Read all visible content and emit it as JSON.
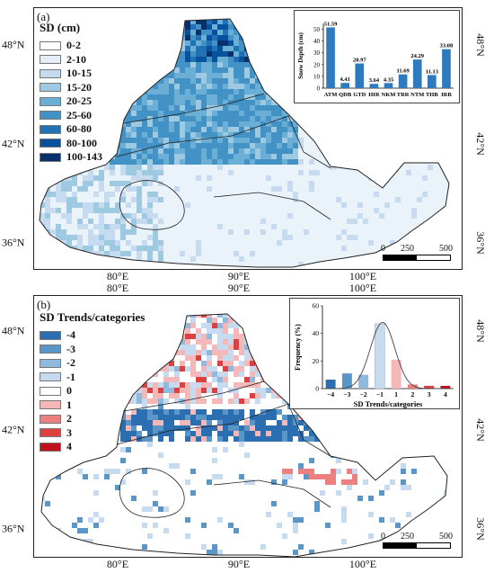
{
  "panel_a": {
    "tag": "(a)",
    "legend": {
      "title": "SD (cm)",
      "items": [
        {
          "label": "0-2",
          "color": "#ffffff"
        },
        {
          "label": "2-10",
          "color": "#e4eef8"
        },
        {
          "label": "10-15",
          "color": "#c6dbef"
        },
        {
          "label": "15-20",
          "color": "#9ecae1"
        },
        {
          "label": "20-25",
          "color": "#6baed6"
        },
        {
          "label": "25-60",
          "color": "#4292c6"
        },
        {
          "label": "60-80",
          "color": "#2171b5"
        },
        {
          "label": "80-100",
          "color": "#08519c"
        },
        {
          "label": "100-143",
          "color": "#08306b"
        }
      ]
    },
    "scale": {
      "labels": [
        "0",
        "250",
        "500 km"
      ]
    }
  },
  "panel_b": {
    "tag": "(b)",
    "legend": {
      "title": "SD Trends/categories",
      "items": [
        {
          "label": "-4",
          "color": "#2c6fb0"
        },
        {
          "label": "-3",
          "color": "#5a96c8"
        },
        {
          "label": "-2",
          "color": "#8fb9dd"
        },
        {
          "label": "-1",
          "color": "#c6dbef"
        },
        {
          "label": "0",
          "color": "#ffffff"
        },
        {
          "label": "1",
          "color": "#f4b8b8"
        },
        {
          "label": "2",
          "color": "#ec7f7f"
        },
        {
          "label": "3",
          "color": "#dd4040"
        },
        {
          "label": "4",
          "color": "#c0101e"
        }
      ]
    },
    "scale": {
      "labels": [
        "0",
        "250",
        "500 km"
      ]
    }
  },
  "axes": {
    "lon_labels": [
      "80°E",
      "90°E",
      "100°E"
    ],
    "lat_labels": [
      "48°N",
      "42°N",
      "36°N"
    ]
  },
  "chart_data": [
    {
      "type": "bar",
      "ylabel": "Snow Depth (cm)",
      "categories": [
        "ATM",
        "QDB",
        "GTD",
        "HIR",
        "NKM",
        "TRR",
        "NTM",
        "THB",
        "IRB"
      ],
      "values": [
        51.59,
        4.41,
        20.97,
        3.64,
        4.35,
        11.69,
        24.29,
        11.13,
        33.08
      ],
      "value_labels": [
        "51.59",
        "4.41",
        "20.97",
        "3.64",
        "4.35",
        "11.69",
        "24.29",
        "11.13",
        "33.08"
      ],
      "ylim": [
        0,
        55
      ],
      "yticks": [
        "0",
        "10",
        "20",
        "30",
        "40",
        "50"
      ],
      "bar_color": "#2d7bbd"
    },
    {
      "type": "bar",
      "xlabel": "SD Trends/categories",
      "ylabel": "Frequency (%)",
      "categories": [
        "−4",
        "−3",
        "−2",
        "−1",
        "1",
        "2",
        "3",
        "4"
      ],
      "values": [
        6.5,
        11,
        10,
        47,
        21,
        3,
        2,
        2
      ],
      "colors": [
        "#2c6fb0",
        "#5a96c8",
        "#8fb9dd",
        "#c6dbef",
        "#f4b8b8",
        "#ec7f7f",
        "#dd4040",
        "#c0101e"
      ],
      "ylim": [
        0,
        60
      ],
      "yticks": [
        "0",
        "20",
        "40",
        "60"
      ],
      "curve": "normal fit"
    }
  ]
}
